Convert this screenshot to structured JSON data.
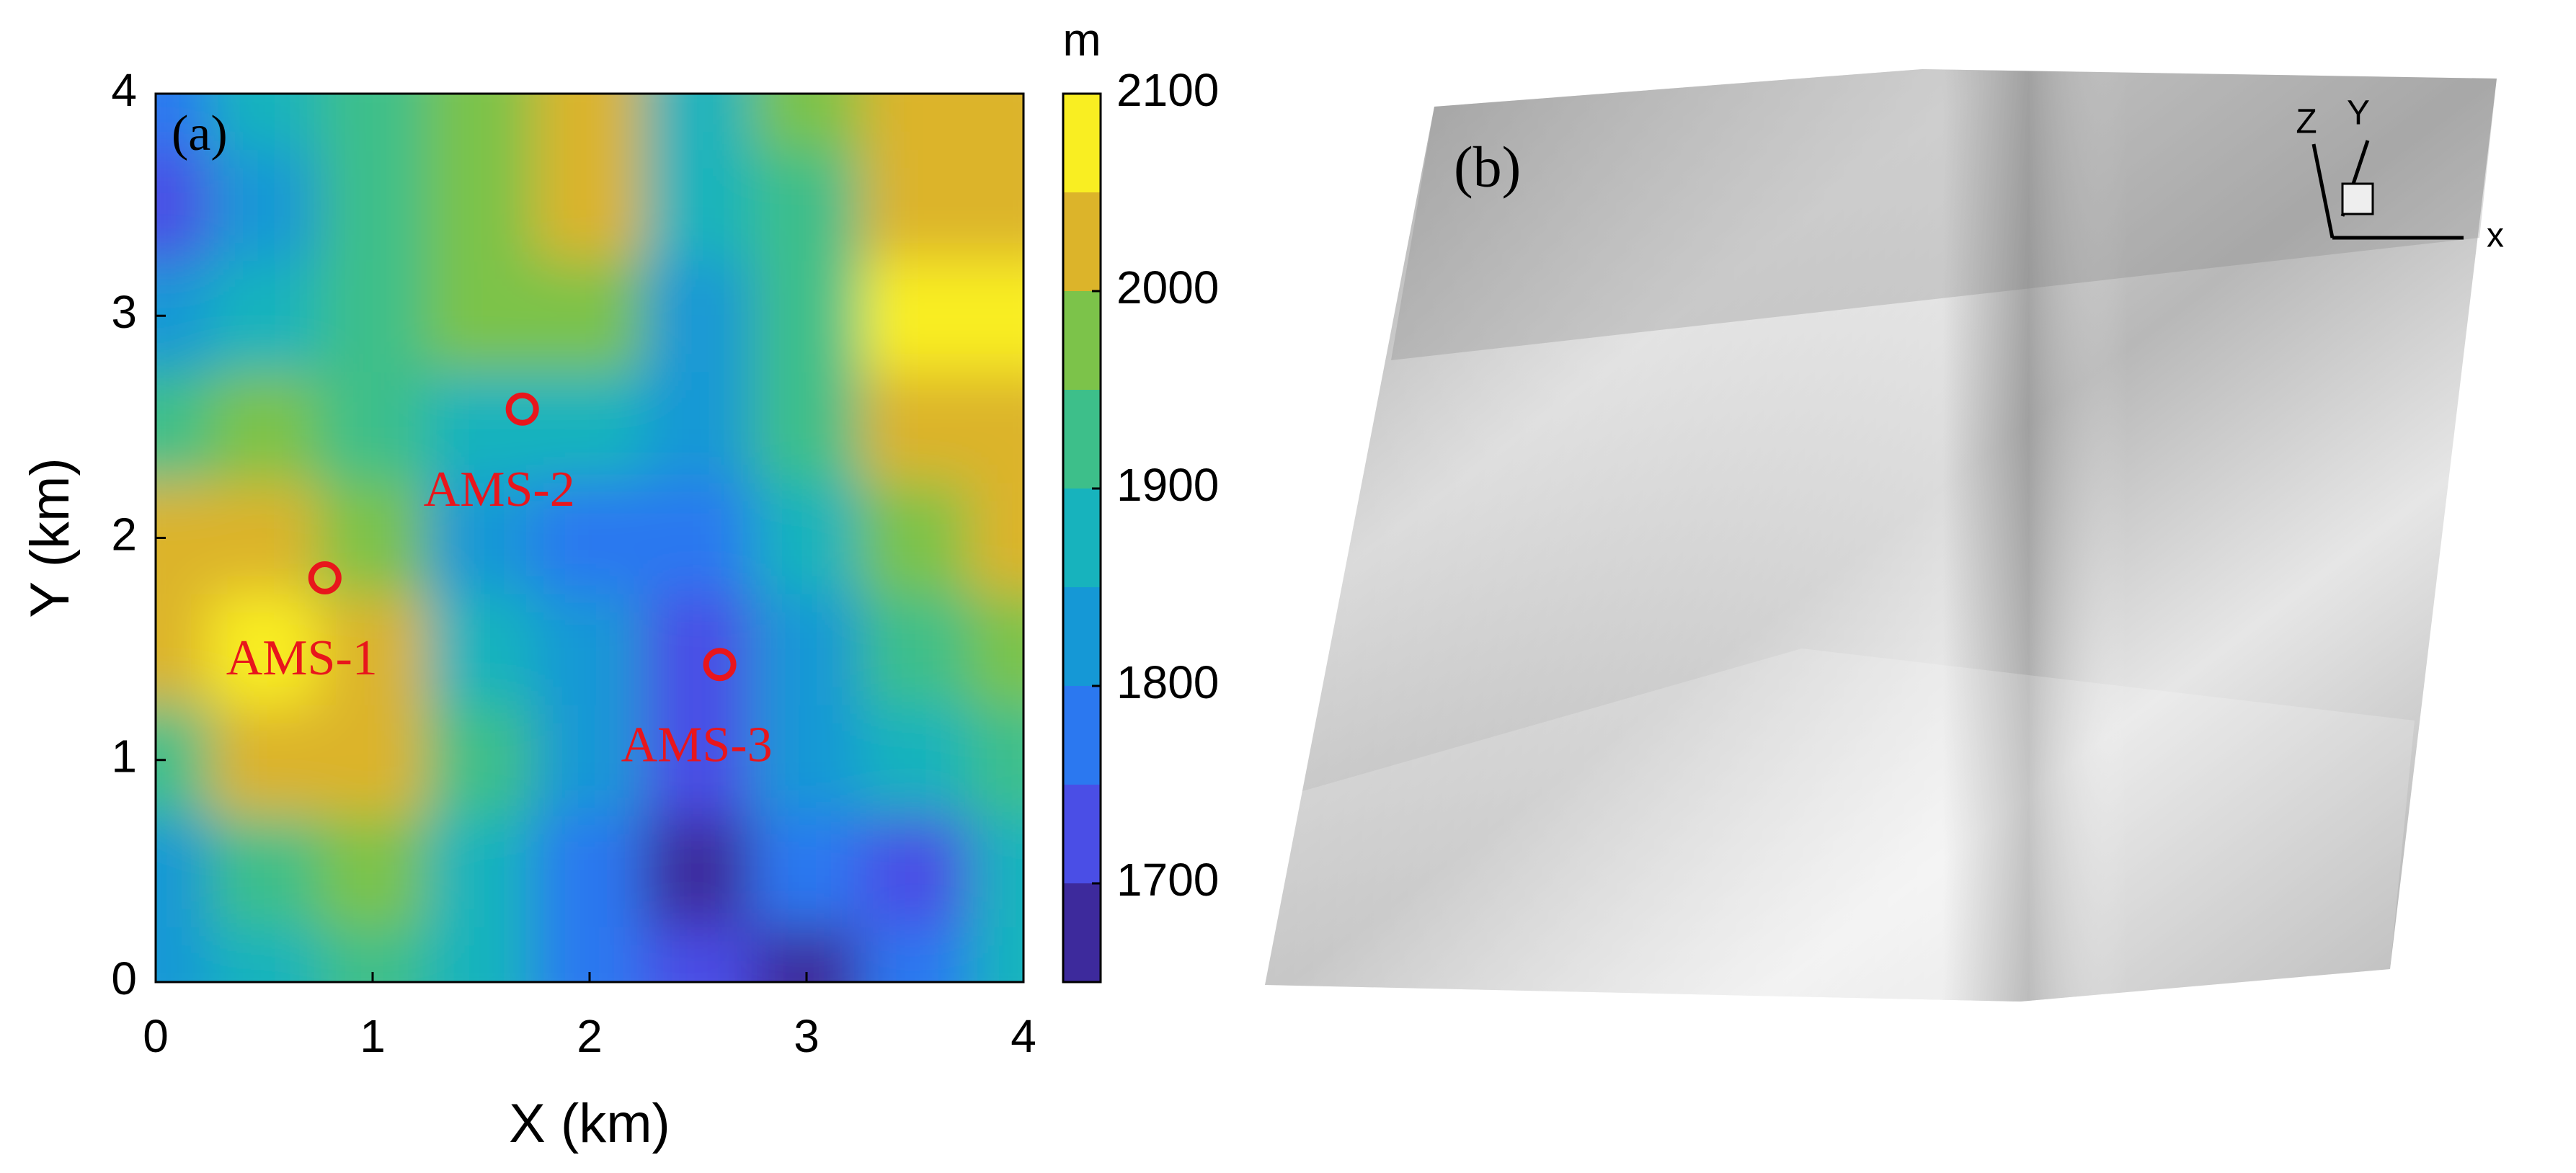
{
  "chart_data": [
    {
      "type": "contour",
      "label": "(a)",
      "xlabel": "X (km)",
      "ylabel": "Y (km)",
      "xlim": [
        0,
        4
      ],
      "ylim": [
        0,
        4
      ],
      "xticks": [
        0,
        1,
        2,
        3,
        4
      ],
      "yticks": [
        0,
        1,
        2,
        3,
        4
      ],
      "x": [
        0,
        0.5,
        1,
        1.5,
        2,
        2.5,
        3,
        3.5,
        4
      ],
      "y": [
        0,
        0.5,
        1,
        1.5,
        2,
        2.5,
        3,
        3.5,
        4
      ],
      "z": [
        [
          1800,
          1880,
          1900,
          1880,
          1780,
          1700,
          1670,
          1780,
          1850
        ],
        [
          1830,
          1910,
          1960,
          1880,
          1790,
          1680,
          1760,
          1740,
          1850
        ],
        [
          1930,
          2010,
          2010,
          1900,
          1810,
          1700,
          1800,
          1860,
          1930
        ],
        [
          2020,
          2060,
          2030,
          1880,
          1820,
          1720,
          1820,
          1920,
          1980
        ],
        [
          2030,
          2040,
          1990,
          1830,
          1790,
          1770,
          1850,
          1970,
          2000
        ],
        [
          1940,
          1960,
          1900,
          1850,
          1880,
          1800,
          1900,
          2010,
          2040
        ],
        [
          1830,
          1880,
          1920,
          1950,
          1960,
          1840,
          1900,
          2060,
          2080
        ],
        [
          1740,
          1800,
          1900,
          1980,
          2020,
          1860,
          1920,
          2030,
          2040
        ],
        [
          1790,
          1850,
          1930,
          1990,
          2000,
          1880,
          1950,
          2020,
          2030
        ]
      ],
      "colorbar": {
        "label": "m",
        "lim": [
          1650,
          2100
        ],
        "ticks": [
          1700,
          1800,
          1900,
          2000,
          2100
        ],
        "levels": [
          1650,
          1700,
          1750,
          1800,
          1850,
          1900,
          1950,
          2000,
          2050,
          2100
        ],
        "colors": [
          "#3d2a9c",
          "#4a4ee6",
          "#2b78f0",
          "#1598d6",
          "#17b3bd",
          "#3dbf8a",
          "#7cc34a",
          "#dcb42a",
          "#f9ee22"
        ]
      },
      "points": {
        "names": [
          "AMS-1",
          "AMS-2",
          "AMS-3"
        ],
        "x": [
          0.78,
          1.69,
          2.6
        ],
        "y": [
          1.82,
          2.58,
          1.43
        ],
        "color": "#e8161c"
      }
    },
    {
      "type": "surface",
      "label": "(b)",
      "axes": [
        "x",
        "Y",
        "Z"
      ]
    }
  ]
}
